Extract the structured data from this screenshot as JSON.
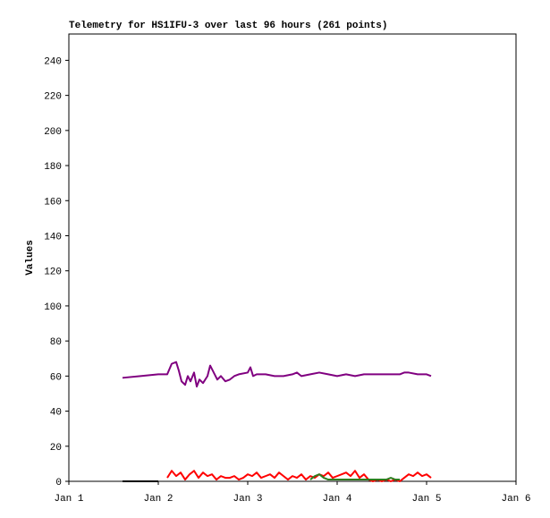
{
  "chart_data": {
    "type": "line",
    "title": "Telemetry for HS1IFU-3 over last 96 hours (261 points)",
    "y_label": "Values",
    "xlim": [
      1,
      6
    ],
    "xticks": [
      {
        "value": 1,
        "label": "Jan 1"
      },
      {
        "value": 2,
        "label": "Jan 2"
      },
      {
        "value": 3,
        "label": "Jan 3"
      },
      {
        "value": 4,
        "label": "Jan 4"
      },
      {
        "value": 5,
        "label": "Jan 5"
      },
      {
        "value": 6,
        "label": "Jan 6"
      }
    ],
    "ylim": [
      0,
      255
    ],
    "yticks": [
      0,
      20,
      40,
      60,
      80,
      100,
      120,
      140,
      160,
      180,
      200,
      220,
      240
    ],
    "grid": false,
    "series": [
      {
        "color": "#000000",
        "x": [
          1.6,
          2.0
        ],
        "values": [
          0,
          0
        ]
      },
      {
        "color": "#800080",
        "x": [
          1.6,
          1.8,
          2.0,
          2.1,
          2.15,
          2.2,
          2.23,
          2.26,
          2.3,
          2.33,
          2.36,
          2.4,
          2.43,
          2.46,
          2.5,
          2.55,
          2.58,
          2.62,
          2.66,
          2.7,
          2.75,
          2.8,
          2.85,
          2.9,
          3.0,
          3.03,
          3.06,
          3.1,
          3.2,
          3.3,
          3.4,
          3.5,
          3.55,
          3.6,
          3.7,
          3.8,
          3.9,
          4.0,
          4.1,
          4.2,
          4.3,
          4.5,
          4.7,
          4.75,
          4.8,
          4.9,
          5.0,
          5.05
        ],
        "values": [
          59,
          60,
          61,
          61,
          67,
          68,
          63,
          57,
          55,
          60,
          57,
          62,
          54,
          58,
          56,
          60,
          66,
          62,
          58,
          60,
          57,
          58,
          60,
          61,
          62,
          65,
          60,
          61,
          61,
          60,
          60,
          61,
          62,
          60,
          61,
          62,
          61,
          60,
          61,
          60,
          61,
          61,
          61,
          62,
          62,
          61,
          61,
          60
        ]
      },
      {
        "color": "#ff0000",
        "x": [
          2.1,
          2.15,
          2.2,
          2.25,
          2.3,
          2.35,
          2.4,
          2.45,
          2.5,
          2.55,
          2.6,
          2.65,
          2.7,
          2.75,
          2.8,
          2.85,
          2.9,
          2.95,
          3.0,
          3.05,
          3.1,
          3.15,
          3.2,
          3.25,
          3.3,
          3.35,
          3.4,
          3.45,
          3.5,
          3.55,
          3.6,
          3.65,
          3.7,
          3.75,
          3.8,
          3.85,
          3.9,
          3.95,
          4.0,
          4.05,
          4.1,
          4.15,
          4.2,
          4.25,
          4.3,
          4.35,
          4.4,
          4.45,
          4.5,
          4.55,
          4.6,
          4.65,
          4.7,
          4.75,
          4.8,
          4.85,
          4.9,
          4.95,
          5.0,
          5.05
        ],
        "values": [
          2,
          6,
          3,
          5,
          1,
          4,
          6,
          2,
          5,
          3,
          4,
          1,
          3,
          2,
          2,
          3,
          1,
          2,
          4,
          3,
          5,
          2,
          3,
          4,
          2,
          5,
          3,
          1,
          3,
          2,
          4,
          1,
          3,
          2,
          4,
          3,
          5,
          2,
          3,
          4,
          5,
          3,
          6,
          2,
          4,
          1,
          0,
          1,
          0,
          1,
          0,
          1,
          0,
          2,
          4,
          3,
          5,
          3,
          4,
          2
        ]
      },
      {
        "color": "#2e7d1e",
        "x": [
          3.7,
          3.75,
          3.8,
          3.85,
          3.9,
          4.5,
          4.55,
          4.6,
          4.65,
          4.7
        ],
        "values": [
          1,
          3,
          4,
          2,
          1,
          1,
          1,
          2,
          1,
          1
        ]
      }
    ]
  }
}
